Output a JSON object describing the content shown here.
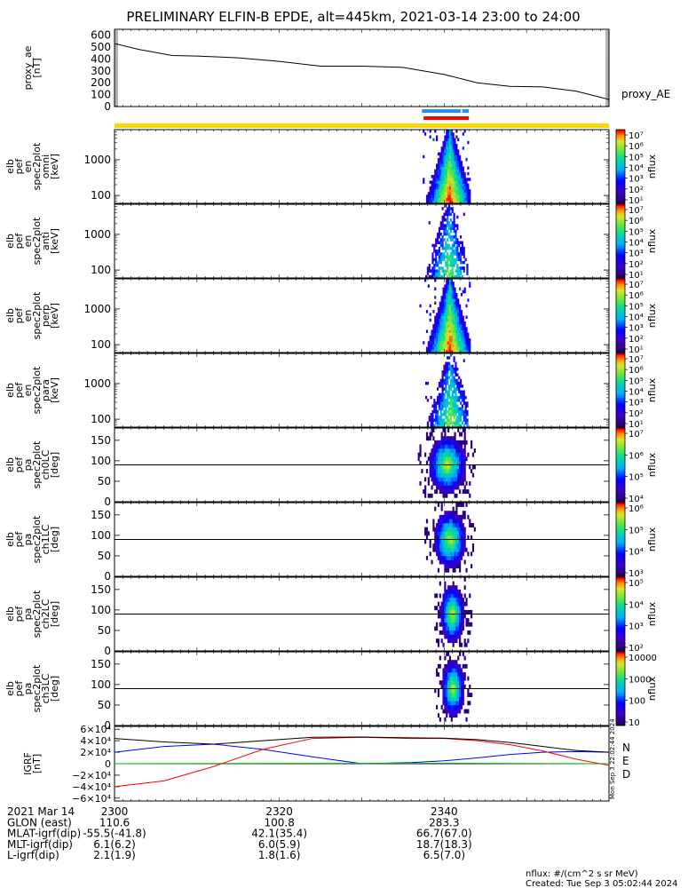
{
  "title": "PRELIMINARY ELFIN-B EPDE, alt=445km, 2021-03-14 23:00 to 24:00",
  "chart_data": [
    {
      "type": "line",
      "id": "ae",
      "ylabel": [
        "proxy_ae",
        "[nT]"
      ],
      "legend": "proxy_AE",
      "ylim": [
        0,
        650
      ],
      "yticks": [
        0,
        100,
        200,
        300,
        400,
        500,
        600
      ],
      "ytick_labels": [
        "0",
        "100",
        "200",
        "300",
        "400",
        "500",
        "600"
      ],
      "x_min": [
        0,
        3,
        7,
        10,
        15,
        20,
        25,
        30,
        35,
        40,
        44,
        48,
        52,
        56,
        60
      ],
      "values": [
        530,
        480,
        430,
        425,
        410,
        380,
        340,
        340,
        330,
        270,
        200,
        170,
        165,
        130,
        60
      ]
    },
    {
      "type": "bar",
      "id": "flags",
      "note": "science zone / fgm flag bars",
      "yellow_range_min": [
        0,
        60
      ],
      "blue_ranges_min": [
        [
          37.3,
          42.0
        ],
        [
          42.2,
          43.0
        ]
      ],
      "red_range_min": [
        37.5,
        43.0
      ]
    },
    {
      "type": "heatmap",
      "id": "en_omni",
      "ylabel": [
        "elb",
        "pef",
        "en",
        "spec2plot",
        "omni",
        "[keV]"
      ],
      "scale": "log",
      "ylim_keV": [
        60,
        7000
      ],
      "ytick_labels": [
        "100",
        "1000"
      ],
      "ytick_values": [
        100,
        1000
      ],
      "active_range_min": [
        37.0,
        43.2
      ],
      "peak_min": 40.6,
      "density": 1.0,
      "cbar_label": "nflux",
      "cbar_ticks": [
        "10⁷",
        "10⁶",
        "10⁵",
        "10⁴",
        "10³",
        "10²",
        "10¹"
      ]
    },
    {
      "type": "heatmap",
      "id": "en_anti",
      "ylabel": [
        "elb",
        "pef",
        "en",
        "spec2plot",
        "anti",
        "[keV]"
      ],
      "scale": "log",
      "ylim_keV": [
        60,
        7000
      ],
      "ytick_labels": [
        "100",
        "1000"
      ],
      "ytick_values": [
        100,
        1000
      ],
      "active_range_min": [
        37.5,
        42.8
      ],
      "peak_min": 40.5,
      "density": 0.35,
      "cbar_label": "nflux",
      "cbar_ticks": [
        "10⁷",
        "10⁶",
        "10⁵",
        "10⁴",
        "10³",
        "10²",
        "10¹"
      ]
    },
    {
      "type": "heatmap",
      "id": "en_perp",
      "ylabel": [
        "elb",
        "pef",
        "en",
        "spec2plot",
        "perp",
        "[keV]"
      ],
      "scale": "log",
      "ylim_keV": [
        60,
        7000
      ],
      "ytick_labels": [
        "100",
        "1000"
      ],
      "ytick_values": [
        100,
        1000
      ],
      "active_range_min": [
        37.0,
        43.2
      ],
      "peak_min": 40.6,
      "density": 1.0,
      "cbar_label": "nflux",
      "cbar_ticks": [
        "10⁷",
        "10⁶",
        "10⁵",
        "10⁴",
        "10³",
        "10²",
        "10¹"
      ]
    },
    {
      "type": "heatmap",
      "id": "en_para",
      "ylabel": [
        "elb",
        "pef",
        "en",
        "spec2plot",
        "para",
        "[keV]"
      ],
      "scale": "log",
      "ylim_keV": [
        60,
        7000
      ],
      "ytick_labels": [
        "100",
        "1000"
      ],
      "ytick_values": [
        100,
        1000
      ],
      "active_range_min": [
        37.3,
        42.8
      ],
      "peak_min": 40.7,
      "density": 0.45,
      "cbar_label": "nflux",
      "cbar_ticks": [
        "10⁷",
        "10⁶",
        "10⁵",
        "10⁴",
        "10³",
        "10²",
        "10¹"
      ]
    },
    {
      "type": "heatmap",
      "id": "pa_ch0",
      "ylabel": [
        "elb",
        "pef",
        "pa",
        "spec2plot",
        "ch0LC",
        "[deg]"
      ],
      "ylim": [
        0,
        180
      ],
      "yticks": [
        0,
        50,
        100,
        150
      ],
      "ytick_labels": [
        "0",
        "50",
        "100",
        "150"
      ],
      "hline_deg": 90,
      "center_min": 40.3,
      "halfwidth_min": 2.3,
      "cbar_label": "nflux",
      "cbar_ticks": [
        "10⁷",
        "10⁶",
        "10⁵",
        "10⁴"
      ]
    },
    {
      "type": "heatmap",
      "id": "pa_ch1",
      "ylabel": [
        "elb",
        "pef",
        "pa",
        "spec2plot",
        "ch1LC",
        "[deg]"
      ],
      "ylim": [
        0,
        180
      ],
      "yticks": [
        0,
        50,
        100,
        150
      ],
      "ytick_labels": [
        "0",
        "50",
        "100",
        "150"
      ],
      "hline_deg": 90,
      "center_min": 40.6,
      "halfwidth_min": 2.0,
      "cbar_label": "nflux",
      "cbar_ticks": [
        "10⁶",
        "10⁵",
        "10⁴",
        "10³"
      ]
    },
    {
      "type": "heatmap",
      "id": "pa_ch2",
      "ylabel": [
        "elb",
        "pef",
        "pa",
        "spec2plot",
        "ch2LC",
        "[deg]"
      ],
      "ylim": [
        0,
        180
      ],
      "yticks": [
        0,
        50,
        100,
        150
      ],
      "ytick_labels": [
        "0",
        "50",
        "100",
        "150"
      ],
      "hline_deg": 90,
      "center_min": 40.9,
      "halfwidth_min": 1.5,
      "cbar_label": "nflux",
      "cbar_ticks": [
        "10⁵",
        "10⁴",
        "10³",
        "10²"
      ]
    },
    {
      "type": "heatmap",
      "id": "pa_ch3",
      "ylabel": [
        "elb",
        "pef",
        "pa",
        "spec2plot",
        "ch3LC",
        "[deg]"
      ],
      "ylim": [
        0,
        180
      ],
      "yticks": [
        0,
        50,
        100,
        150
      ],
      "ytick_labels": [
        "0",
        "50",
        "100",
        "150"
      ],
      "hline_deg": 90,
      "center_min": 41.0,
      "halfwidth_min": 1.4,
      "cbar_label": "nflux",
      "cbar_ticks": [
        "10000",
        "1000",
        "100",
        "10"
      ]
    },
    {
      "type": "line",
      "id": "igrf",
      "ylabel": [
        "IGRF",
        "[nT]"
      ],
      "ylim": [
        -65000,
        65000
      ],
      "ytick_values": [
        -60000,
        -40000,
        -20000,
        0,
        20000,
        40000,
        60000
      ],
      "ytick_labels": [
        "−6×10⁴",
        "−4×10⁴",
        "−2×10⁴",
        "0",
        "2×10⁴",
        "4×10⁴",
        "6×10⁴"
      ],
      "hline_value": 0,
      "legend": [
        "N",
        "E",
        "D"
      ],
      "legend_colors": [
        "#0000ff",
        "#00bb00",
        "#ff0000"
      ],
      "series": [
        {
          "name": "N",
          "color": "#0000ff",
          "x_min": [
            0,
            6,
            12,
            18,
            24,
            30,
            36,
            40,
            44,
            48,
            52,
            56,
            60
          ],
          "values": [
            20000,
            30000,
            34000,
            25000,
            12000,
            0,
            2000,
            5000,
            10000,
            16000,
            20000,
            21000,
            20000
          ]
        },
        {
          "name": "E",
          "color": "#00bb00",
          "x_min": [
            0,
            20,
            40,
            60
          ],
          "values": [
            0,
            500,
            800,
            0
          ]
        },
        {
          "name": "D",
          "color": "#ff0000",
          "x_min": [
            0,
            6,
            12,
            18,
            24,
            30,
            36,
            40,
            44,
            48,
            52,
            56,
            60
          ],
          "values": [
            -40000,
            -30000,
            -5000,
            25000,
            44000,
            46000,
            44000,
            44000,
            40000,
            33000,
            22000,
            8000,
            -3000
          ]
        },
        {
          "name": "total",
          "color": "#000000",
          "x_min": [
            0,
            6,
            12,
            18,
            24,
            30,
            36,
            40,
            44,
            48,
            52,
            56,
            60
          ],
          "values": [
            44000,
            38000,
            34000,
            40000,
            46000,
            46500,
            45000,
            44500,
            42000,
            37000,
            30000,
            23000,
            20000
          ]
        }
      ]
    }
  ],
  "side_stamp": "Mon Sep  3 22:02:44 2024",
  "time_axis": {
    "rows": [
      {
        "label": "2021 Mar 14",
        "values": [
          "2300",
          "2320",
          "2340"
        ]
      },
      {
        "label": "GLON (east)",
        "values": [
          "110.6",
          "100.8",
          "283.3"
        ]
      },
      {
        "label": "MLAT-igrf(dip)",
        "values": [
          "-55.5(-41.8)",
          "42.1(35.4)",
          "66.7(67.0)"
        ]
      },
      {
        "label": "MLT-igrf(dip)",
        "values": [
          "6.1(6.2)",
          "6.0(5.9)",
          "18.7(18.3)"
        ]
      },
      {
        "label": "L-igrf(dip)",
        "values": [
          "2.1(1.9)",
          "1.8(1.6)",
          "6.5(7.0)"
        ]
      }
    ],
    "tick_minutes": [
      0,
      20,
      40
    ]
  },
  "footer": {
    "units": "nflux: #/(cm^2 s sr MeV)",
    "created": "Created: Tue Sep  3 05:02:44 2024"
  }
}
